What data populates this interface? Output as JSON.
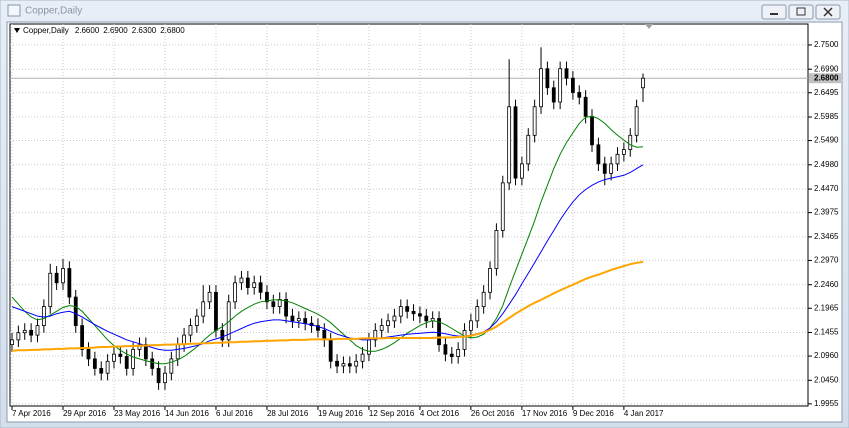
{
  "window_title": "Copper,Daily",
  "chart_data": {
    "type": "candlestick",
    "title": "Copper,Daily",
    "header_values": [
      "2.6600",
      "2.6900",
      "2.6300",
      "2.6800"
    ],
    "categories": [
      "7 Apr 2016",
      null,
      null,
      null,
      null,
      null,
      null,
      null,
      "29 Apr 2016",
      null,
      null,
      null,
      null,
      null,
      null,
      null,
      "23 May 2016",
      null,
      null,
      null,
      null,
      null,
      null,
      null,
      "14 Jun 2016",
      null,
      null,
      null,
      null,
      null,
      null,
      null,
      "6 Jul 2016",
      null,
      null,
      null,
      null,
      null,
      null,
      null,
      "28 Jul 2016",
      null,
      null,
      null,
      null,
      null,
      null,
      null,
      "19 Aug 2016",
      null,
      null,
      null,
      null,
      null,
      null,
      null,
      "12 Sep 2016",
      null,
      null,
      null,
      null,
      null,
      null,
      null,
      "4 Oct 2016",
      null,
      null,
      null,
      null,
      null,
      null,
      null,
      "26 Oct 2016",
      null,
      null,
      null,
      null,
      null,
      null,
      null,
      "17 Nov 2016",
      null,
      null,
      null,
      null,
      null,
      null,
      null,
      "9 Dec 2016",
      null,
      null,
      null,
      null,
      null,
      null,
      null,
      "4 Jan 2017",
      null,
      null,
      null
    ],
    "open": [
      2.12,
      2.13,
      2.145,
      2.15,
      2.14,
      2.16,
      2.2,
      2.27,
      2.25,
      2.28,
      2.22,
      2.16,
      2.11,
      2.09,
      2.07,
      2.06,
      2.085,
      2.1,
      2.095,
      2.07,
      2.11,
      2.12,
      2.09,
      2.07,
      2.04,
      2.06,
      2.09,
      2.12,
      2.14,
      2.16,
      2.18,
      2.21,
      2.23,
      2.15,
      2.13,
      2.21,
      2.25,
      2.26,
      2.24,
      2.25,
      2.23,
      2.21,
      2.2,
      2.215,
      2.18,
      2.17,
      2.175,
      2.165,
      2.16,
      2.15,
      2.13,
      2.085,
      2.075,
      2.08,
      2.075,
      2.085,
      2.1,
      2.13,
      2.15,
      2.16,
      2.17,
      2.18,
      2.2,
      2.19,
      2.185,
      2.18,
      2.17,
      2.175,
      2.12,
      2.1,
      2.095,
      2.11,
      2.15,
      2.17,
      2.2,
      2.23,
      2.28,
      2.36,
      2.46,
      2.62,
      2.47,
      2.5,
      2.56,
      2.62,
      2.7,
      2.66,
      2.63,
      2.7,
      2.68,
      2.65,
      2.64,
      2.6,
      2.54,
      2.5,
      2.48,
      2.5,
      2.52,
      2.53,
      2.56,
      2.66
    ],
    "high": [
      2.145,
      2.16,
      2.165,
      2.165,
      2.175,
      2.215,
      2.29,
      2.285,
      2.3,
      2.295,
      2.235,
      2.175,
      2.125,
      2.105,
      2.085,
      2.1,
      2.115,
      2.115,
      2.11,
      2.125,
      2.135,
      2.135,
      2.105,
      2.085,
      2.075,
      2.105,
      2.135,
      2.155,
      2.175,
      2.195,
      2.245,
      2.245,
      2.245,
      2.165,
      2.225,
      2.265,
      2.275,
      2.275,
      2.265,
      2.265,
      2.245,
      2.225,
      2.23,
      2.23,
      2.195,
      2.19,
      2.19,
      2.18,
      2.175,
      2.165,
      2.145,
      2.1,
      2.095,
      2.095,
      2.1,
      2.115,
      2.145,
      2.165,
      2.175,
      2.185,
      2.195,
      2.215,
      2.215,
      2.205,
      2.2,
      2.195,
      2.19,
      2.19,
      2.135,
      2.115,
      2.125,
      2.165,
      2.185,
      2.215,
      2.245,
      2.295,
      2.375,
      2.475,
      2.72,
      2.635,
      2.515,
      2.575,
      2.635,
      2.745,
      2.715,
      2.675,
      2.715,
      2.715,
      2.695,
      2.665,
      2.655,
      2.615,
      2.555,
      2.515,
      2.515,
      2.535,
      2.545,
      2.575,
      2.635,
      2.69
    ],
    "low": [
      2.105,
      2.115,
      2.13,
      2.125,
      2.125,
      2.145,
      2.185,
      2.235,
      2.235,
      2.205,
      2.145,
      2.095,
      2.075,
      2.055,
      2.045,
      2.045,
      2.07,
      2.08,
      2.055,
      2.055,
      2.095,
      2.075,
      2.055,
      2.025,
      2.025,
      2.045,
      2.075,
      2.105,
      2.125,
      2.145,
      2.165,
      2.195,
      2.135,
      2.115,
      2.115,
      2.195,
      2.235,
      2.225,
      2.225,
      2.215,
      2.195,
      2.185,
      2.185,
      2.165,
      2.155,
      2.155,
      2.15,
      2.145,
      2.135,
      2.115,
      2.07,
      2.06,
      2.06,
      2.06,
      2.06,
      2.07,
      2.085,
      2.115,
      2.135,
      2.145,
      2.155,
      2.165,
      2.175,
      2.17,
      2.165,
      2.155,
      2.155,
      2.105,
      2.085,
      2.08,
      2.08,
      2.095,
      2.135,
      2.155,
      2.185,
      2.215,
      2.265,
      2.345,
      2.445,
      2.455,
      2.455,
      2.485,
      2.545,
      2.605,
      2.645,
      2.615,
      2.615,
      2.665,
      2.635,
      2.625,
      2.585,
      2.525,
      2.485,
      2.455,
      2.465,
      2.485,
      2.505,
      2.515,
      2.545,
      2.63
    ],
    "close": [
      2.13,
      2.145,
      2.15,
      2.14,
      2.16,
      2.2,
      2.27,
      2.25,
      2.28,
      2.22,
      2.16,
      2.11,
      2.09,
      2.07,
      2.06,
      2.085,
      2.1,
      2.095,
      2.07,
      2.11,
      2.12,
      2.09,
      2.07,
      2.04,
      2.06,
      2.09,
      2.12,
      2.14,
      2.16,
      2.18,
      2.21,
      2.23,
      2.15,
      2.13,
      2.21,
      2.25,
      2.26,
      2.24,
      2.25,
      2.23,
      2.21,
      2.2,
      2.215,
      2.18,
      2.17,
      2.175,
      2.165,
      2.16,
      2.15,
      2.13,
      2.085,
      2.075,
      2.08,
      2.075,
      2.085,
      2.1,
      2.13,
      2.15,
      2.16,
      2.17,
      2.18,
      2.2,
      2.19,
      2.185,
      2.18,
      2.17,
      2.175,
      2.12,
      2.1,
      2.095,
      2.11,
      2.15,
      2.17,
      2.2,
      2.23,
      2.28,
      2.36,
      2.46,
      2.62,
      2.47,
      2.5,
      2.56,
      2.62,
      2.7,
      2.66,
      2.63,
      2.7,
      2.68,
      2.65,
      2.64,
      2.6,
      2.54,
      2.5,
      2.48,
      2.5,
      2.52,
      2.53,
      2.56,
      2.62,
      2.68
    ],
    "series": [
      {
        "color": "#008000",
        "width": 1,
        "values": [
          2.22,
          2.205,
          2.19,
          2.178,
          2.172,
          2.175,
          2.182,
          2.19,
          2.198,
          2.202,
          2.2,
          2.19,
          2.175,
          2.16,
          2.145,
          2.13,
          2.118,
          2.108,
          2.1,
          2.094,
          2.09,
          2.086,
          2.083,
          2.08,
          2.08,
          2.083,
          2.088,
          2.095,
          2.105,
          2.115,
          2.128,
          2.14,
          2.15,
          2.158,
          2.168,
          2.18,
          2.19,
          2.198,
          2.205,
          2.21,
          2.212,
          2.214,
          2.214,
          2.212,
          2.208,
          2.202,
          2.196,
          2.19,
          2.184,
          2.176,
          2.166,
          2.154,
          2.142,
          2.13,
          2.118,
          2.11,
          2.106,
          2.106,
          2.11,
          2.116,
          2.124,
          2.134,
          2.144,
          2.152,
          2.16,
          2.166,
          2.17,
          2.168,
          2.162,
          2.154,
          2.146,
          2.138,
          2.134,
          2.136,
          2.142,
          2.155,
          2.175,
          2.202,
          2.24,
          2.275,
          2.31,
          2.345,
          2.38,
          2.42,
          2.455,
          2.49,
          2.52,
          2.545,
          2.565,
          2.585,
          2.598,
          2.6,
          2.595,
          2.585,
          2.572,
          2.56,
          2.55,
          2.54,
          2.535,
          2.536
        ]
      },
      {
        "color": "#0000ff",
        "width": 1,
        "values": [
          2.2,
          2.195,
          2.19,
          2.185,
          2.18,
          2.178,
          2.18,
          2.185,
          2.188,
          2.19,
          2.185,
          2.178,
          2.17,
          2.162,
          2.155,
          2.148,
          2.142,
          2.136,
          2.13,
          2.126,
          2.122,
          2.118,
          2.114,
          2.11,
          2.108,
          2.108,
          2.11,
          2.112,
          2.115,
          2.118,
          2.122,
          2.128,
          2.132,
          2.136,
          2.142,
          2.148,
          2.154,
          2.16,
          2.165,
          2.168,
          2.17,
          2.172,
          2.172,
          2.17,
          2.168,
          2.166,
          2.164,
          2.162,
          2.158,
          2.154,
          2.148,
          2.142,
          2.138,
          2.134,
          2.132,
          2.13,
          2.13,
          2.132,
          2.134,
          2.136,
          2.138,
          2.14,
          2.142,
          2.143,
          2.144,
          2.145,
          2.146,
          2.145,
          2.143,
          2.14,
          2.138,
          2.138,
          2.14,
          2.143,
          2.147,
          2.155,
          2.168,
          2.185,
          2.205,
          2.225,
          2.248,
          2.27,
          2.292,
          2.315,
          2.338,
          2.36,
          2.382,
          2.402,
          2.42,
          2.435,
          2.446,
          2.455,
          2.462,
          2.467,
          2.47,
          2.473,
          2.476,
          2.482,
          2.49,
          2.498
        ]
      },
      {
        "color": "#ffa500",
        "width": 2,
        "values": [
          2.107,
          2.108,
          2.108,
          2.109,
          2.109,
          2.11,
          2.11,
          2.111,
          2.111,
          2.112,
          2.112,
          2.113,
          2.113,
          2.114,
          2.115,
          2.115,
          2.116,
          2.116,
          2.117,
          2.117,
          2.118,
          2.118,
          2.119,
          2.119,
          2.12,
          2.12,
          2.121,
          2.121,
          2.122,
          2.122,
          2.123,
          2.123,
          2.124,
          2.124,
          2.125,
          2.125,
          2.126,
          2.126,
          2.127,
          2.127,
          2.128,
          2.128,
          2.129,
          2.129,
          2.13,
          2.13,
          2.13,
          2.131,
          2.131,
          2.131,
          2.131,
          2.132,
          2.132,
          2.132,
          2.132,
          2.133,
          2.133,
          2.133,
          2.133,
          2.134,
          2.134,
          2.134,
          2.134,
          2.134,
          2.134,
          2.134,
          2.134,
          2.135,
          2.135,
          2.135,
          2.136,
          2.137,
          2.139,
          2.142,
          2.146,
          2.151,
          2.158,
          2.167,
          2.176,
          2.185,
          2.193,
          2.201,
          2.208,
          2.214,
          2.221,
          2.228,
          2.234,
          2.24,
          2.246,
          2.252,
          2.258,
          2.263,
          2.267,
          2.272,
          2.277,
          2.281,
          2.285,
          2.289,
          2.292,
          2.294
        ]
      }
    ],
    "ylim": [
      1.991,
      2.794
    ],
    "yticks": [
      1.9955,
      {
        "value": 2.045,
        "label": "2.0450"
      },
      {
        "value": 2.096,
        "label": "2.0960"
      },
      2.1455,
      2.1965,
      {
        "value": 2.246,
        "label": "2.2460"
      },
      {
        "value": 2.297,
        "label": "2.2970"
      },
      2.3465,
      2.3975,
      {
        "value": 2.447,
        "label": "2.4470"
      },
      {
        "value": 2.498,
        "label": "2.4980"
      },
      {
        "value": 2.549,
        "label": "2.5490"
      },
      2.5985,
      2.6495,
      {
        "value": 2.699,
        "label": "2.6990"
      },
      {
        "value": 2.75,
        "label": "2.7500"
      }
    ],
    "grid": true,
    "current_price": {
      "value": 2.68,
      "label": "2.6800"
    }
  }
}
